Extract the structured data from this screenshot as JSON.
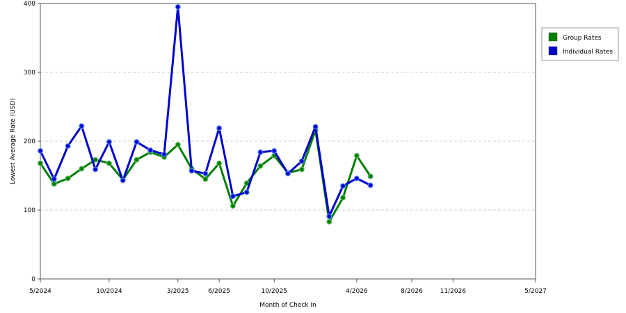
{
  "chart_data": {
    "type": "line",
    "title": "",
    "xlabel": "Month of Check In",
    "ylabel": "Lowest Average Rate (USD)",
    "ylim": [
      0,
      400
    ],
    "yticks": [
      0,
      100,
      200,
      300,
      400
    ],
    "grid": "horizontal dashed",
    "legend_position": "right",
    "x": [
      "5/2024",
      "6/2024",
      "7/2024",
      "8/2024",
      "9/2024",
      "10/2024",
      "11/2024",
      "12/2024",
      "1/2025",
      "2/2025",
      "3/2025",
      "4/2025",
      "5/2025",
      "6/2025",
      "7/2025",
      "8/2025",
      "9/2025",
      "10/2025",
      "11/2025",
      "12/2025",
      "1/2026",
      "2/2026",
      "3/2026",
      "4/2026",
      "5/2026",
      "6/2026",
      "7/2026",
      "8/2026",
      "9/2026",
      "10/2026",
      "11/2026",
      "12/2026",
      "1/2027",
      "2/2027",
      "3/2027",
      "4/2027",
      "5/2027"
    ],
    "xtick_labels": [
      "5/2024",
      "10/2024",
      "3/2025",
      "6/2025",
      "10/2025",
      "4/2026",
      "8/2026",
      "11/2026",
      "5/2027"
    ],
    "series": [
      {
        "name": "Group Rates",
        "color": "#008000",
        "points": [
          {
            "x": 0,
            "y": 168
          },
          {
            "x": 1,
            "y": 138
          },
          {
            "x": 2,
            "y": 146
          },
          {
            "x": 3,
            "y": 160
          },
          {
            "x": 4,
            "y": 173
          },
          {
            "x": 5,
            "y": 168
          },
          {
            "x": 6,
            "y": 144
          },
          {
            "x": 7,
            "y": 173
          },
          {
            "x": 8,
            "y": 184
          },
          {
            "x": 9,
            "y": 177
          },
          {
            "x": 10,
            "y": 195
          },
          {
            "x": 11,
            "y": 160
          },
          {
            "x": 12,
            "y": 145
          },
          {
            "x": 13,
            "y": 168
          },
          {
            "x": 14,
            "y": 106
          },
          {
            "x": 15,
            "y": 139
          },
          {
            "x": 16,
            "y": 164
          },
          {
            "x": 17,
            "y": 179
          },
          {
            "x": 18,
            "y": 154
          },
          {
            "x": 19,
            "y": 159
          },
          {
            "x": 20,
            "y": 216
          },
          {
            "x": 21,
            "y": 83
          },
          {
            "x": 22,
            "y": 118
          },
          {
            "x": 23,
            "y": 179
          },
          {
            "x": 24,
            "y": 149
          }
        ]
      },
      {
        "name": "Individual Rates",
        "color": "#0000cc",
        "points": [
          {
            "x": 0,
            "y": 186
          },
          {
            "x": 1,
            "y": 145
          },
          {
            "x": 2,
            "y": 193
          },
          {
            "x": 3,
            "y": 222
          },
          {
            "x": 4,
            "y": 159
          },
          {
            "x": 5,
            "y": 199
          },
          {
            "x": 6,
            "y": 143
          },
          {
            "x": 7,
            "y": 199
          },
          {
            "x": 8,
            "y": 187
          },
          {
            "x": 9,
            "y": 181
          },
          {
            "x": 10,
            "y": 395
          },
          {
            "x": 11,
            "y": 157
          },
          {
            "x": 12,
            "y": 153
          },
          {
            "x": 13,
            "y": 219
          },
          {
            "x": 14,
            "y": 120
          },
          {
            "x": 15,
            "y": 126
          },
          {
            "x": 16,
            "y": 184
          },
          {
            "x": 17,
            "y": 186
          },
          {
            "x": 18,
            "y": 153
          },
          {
            "x": 19,
            "y": 171
          },
          {
            "x": 20,
            "y": 221
          },
          {
            "x": 21,
            "y": 91
          },
          {
            "x": 22,
            "y": 135
          },
          {
            "x": 23,
            "y": 146
          },
          {
            "x": 24,
            "y": 136
          }
        ]
      }
    ]
  }
}
